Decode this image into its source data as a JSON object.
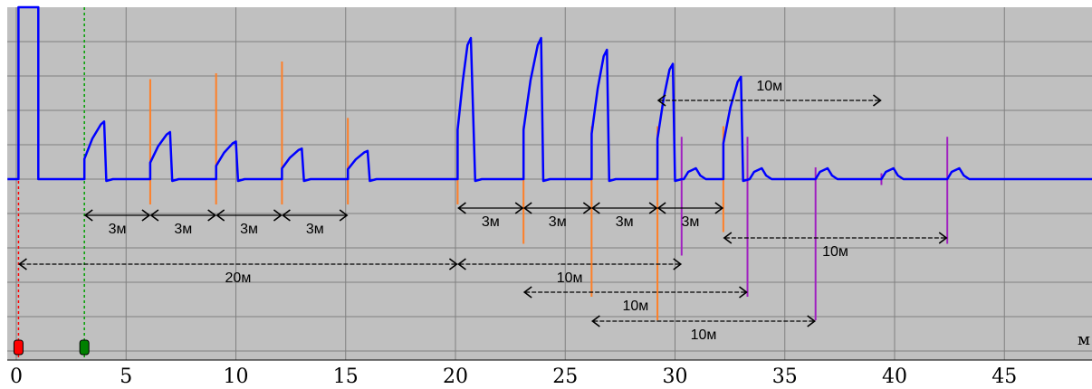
{
  "colors": {
    "background": "#c0c0c0",
    "grid": "#808080",
    "signal": "#0000ff",
    "event_orange": "#ff7f27",
    "event_purple": "#a020c0",
    "arrow": "#000000",
    "marker_red": "#ff0000",
    "marker_green": "#008000",
    "cursor_red": "#ff0000",
    "cursor_green": "#00a000"
  },
  "chart_data": {
    "type": "line",
    "title": "",
    "xlabel": "",
    "unit_label": "м",
    "xlim": [
      0,
      49.2
    ],
    "x_ticks": [
      0,
      5,
      10,
      15,
      20,
      25,
      30,
      35,
      40,
      45
    ],
    "x_tick_labels": [
      "0",
      "5",
      "10",
      "15",
      "20",
      "25",
      "30",
      "35",
      "40",
      "45"
    ],
    "grid": true,
    "pulses": [
      {
        "start": 3.1,
        "peak": 4.0,
        "end": 4.1,
        "height": 0.49
      },
      {
        "start": 6.1,
        "peak": 7.0,
        "end": 7.1,
        "height": 0.4
      },
      {
        "start": 9.1,
        "peak": 10.0,
        "end": 10.1,
        "height": 0.32
      },
      {
        "start": 12.1,
        "peak": 13.0,
        "end": 13.1,
        "height": 0.26
      },
      {
        "start": 15.1,
        "peak": 16.0,
        "end": 16.1,
        "height": 0.24
      },
      {
        "start": 20.1,
        "peak": 20.7,
        "end": 20.9,
        "height": 1.2
      },
      {
        "start": 23.1,
        "peak": 23.9,
        "end": 24.0,
        "height": 1.2
      },
      {
        "start": 26.2,
        "peak": 26.9,
        "end": 27.0,
        "height": 1.1
      },
      {
        "start": 29.2,
        "peak": 29.9,
        "end": 30.0,
        "height": 0.98
      },
      {
        "start": 32.2,
        "peak": 33.0,
        "end": 33.1,
        "height": 0.87
      }
    ],
    "small_bumps": [
      30.8,
      33.8,
      36.8,
      39.8,
      42.8
    ],
    "orange_lines": [
      {
        "x": 6.1,
        "top": 0.85
      },
      {
        "x": 9.1,
        "top": 0.9
      },
      {
        "x": 12.1,
        "top": 1.0
      },
      {
        "x": 15.1,
        "top": 0.52
      },
      {
        "x": 20.1,
        "top": 0.35
      },
      {
        "x": 23.1,
        "top": 0.45
      },
      {
        "x": 26.2,
        "top": 0.45
      },
      {
        "x": 29.2,
        "top": 0.45
      },
      {
        "x": 32.2,
        "top": 0.45
      }
    ],
    "purple_lines": [
      {
        "x": 30.3,
        "top": 0.36
      },
      {
        "x": 33.3,
        "top": 0.36
      },
      {
        "x": 36.4,
        "top": 0.1
      },
      {
        "x": 39.4,
        "top": 0.05
      },
      {
        "x": 42.4,
        "top": 0.36
      }
    ],
    "annotations": [
      {
        "label": "3м",
        "x1": 3.1,
        "x2": 6.1,
        "level": 1
      },
      {
        "label": "3м",
        "x1": 6.1,
        "x2": 9.1,
        "level": 1
      },
      {
        "label": "3м",
        "x1": 9.1,
        "x2": 12.1,
        "level": 1
      },
      {
        "label": "3м",
        "x1": 12.1,
        "x2": 15.1,
        "level": 1
      },
      {
        "label": "3м",
        "x1": 20.1,
        "x2": 23.1,
        "level": 0
      },
      {
        "label": "3м",
        "x1": 23.1,
        "x2": 26.2,
        "level": 0
      },
      {
        "label": "3м",
        "x1": 26.2,
        "x2": 29.2,
        "level": 0
      },
      {
        "label": "3м",
        "x1": 29.2,
        "x2": 32.2,
        "level": 0
      },
      {
        "label": "20м",
        "x1": 0.1,
        "x2": 20.1,
        "level": 3
      },
      {
        "label": "10м",
        "x1": 20.1,
        "x2": 30.3,
        "level": 3
      },
      {
        "label": "10м",
        "x1": 23.1,
        "x2": 33.3,
        "level": 4
      },
      {
        "label": "10м",
        "x1": 26.2,
        "x2": 36.4,
        "level": 5
      },
      {
        "label": "10м",
        "x1": 32.2,
        "x2": 42.4,
        "level": 2
      },
      {
        "label": "10м",
        "x1": 29.2,
        "x2": 39.4,
        "level": -3
      }
    ],
    "markers": [
      {
        "x": 0.1,
        "color": "red"
      },
      {
        "x": 3.1,
        "color": "green"
      }
    ]
  }
}
